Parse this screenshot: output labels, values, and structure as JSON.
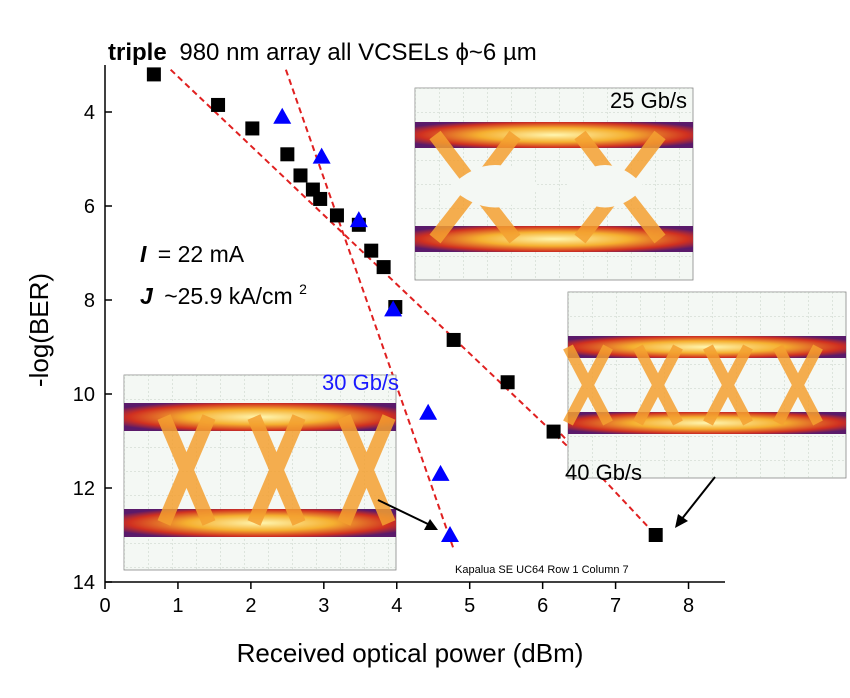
{
  "chart_data": {
    "type": "scatter",
    "title_bold": "triple",
    "title_rest": "980 nm array all VCSELs ϕ~6 µm",
    "xlabel": "Received optical power (dBm)",
    "ylabel": "-log(BER)",
    "xlim": [
      0,
      8.5
    ],
    "ylim": [
      3.0,
      14.0
    ],
    "y_inverted": true,
    "xticks": [
      "0",
      "1",
      "2",
      "3",
      "4",
      "5",
      "6",
      "7",
      "8"
    ],
    "yticks": [
      "4",
      "6",
      "8",
      "10",
      "12",
      "14"
    ],
    "grid": false,
    "series": [
      {
        "name": "25 Gb/s",
        "marker": "square",
        "color": "#000000",
        "x": [
          0.67,
          1.55,
          2.02,
          2.5,
          2.68,
          2.85,
          2.95,
          3.18,
          3.48,
          3.65,
          3.82,
          3.98,
          4.78,
          5.52,
          6.15
        ],
        "y": [
          3.2,
          3.85,
          4.35,
          4.9,
          5.35,
          5.65,
          5.85,
          6.2,
          6.4,
          6.95,
          7.3,
          8.15,
          8.85,
          9.75,
          10.8
        ],
        "fit_line": {
          "x": [
            0.9,
            6.4
          ],
          "y": [
            3.1,
            11.2
          ]
        }
      },
      {
        "name": "30 Gb/s",
        "marker": "triangle",
        "color": "#0000ff",
        "x": [
          2.43,
          2.97,
          3.48,
          3.95,
          4.43,
          4.6,
          4.73
        ],
        "y": [
          4.1,
          4.95,
          6.3,
          8.2,
          10.4,
          11.7,
          13.0
        ],
        "fit_line": {
          "x": [
            2.48,
            4.78
          ],
          "y": [
            3.1,
            13.3
          ]
        }
      },
      {
        "name": "40 Gb/s",
        "marker": "square",
        "color": "#000000",
        "x": [
          7.55
        ],
        "y": [
          13.0
        ],
        "fit_line": {
          "x": [
            6.25,
            7.55
          ],
          "y": [
            10.85,
            13.0
          ]
        }
      }
    ],
    "fit_line_color": "#e02020",
    "annotations": {
      "current": "= 22 mA",
      "current_symbol": "I",
      "current_density_symbol": "J",
      "current_density": "~25.9 kA/cm",
      "current_density_exp": "2",
      "label_25": "25 Gb/s",
      "label_30": "30 Gb/s",
      "label_40": "40 Gb/s",
      "footer": "Kapalua SE UC64 Row 1 Column 7"
    }
  }
}
